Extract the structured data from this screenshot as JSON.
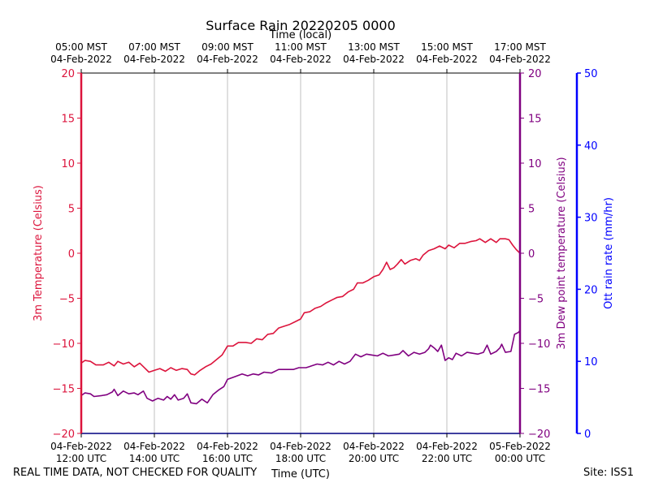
{
  "chart_data": {
    "type": "line",
    "title": "Surface Rain 20220205 0000",
    "xlabel_bottom": "Time (UTC)",
    "xlabel_top": "Time (local)",
    "x_range_hours_utc": [
      12,
      24
    ],
    "x_ticks_bottom": [
      {
        "hour": 12,
        "date": "04-Feb-2022",
        "time": "12:00 UTC"
      },
      {
        "hour": 14,
        "date": "04-Feb-2022",
        "time": "14:00 UTC"
      },
      {
        "hour": 16,
        "date": "04-Feb-2022",
        "time": "16:00 UTC"
      },
      {
        "hour": 18,
        "date": "04-Feb-2022",
        "time": "18:00 UTC"
      },
      {
        "hour": 20,
        "date": "04-Feb-2022",
        "time": "20:00 UTC"
      },
      {
        "hour": 22,
        "date": "04-Feb-2022",
        "time": "22:00 UTC"
      },
      {
        "hour": 24,
        "date": "05-Feb-2022",
        "time": "00:00 UTC"
      }
    ],
    "x_ticks_top": [
      {
        "hour": 12,
        "time": "05:00 MST",
        "date": "04-Feb-2022"
      },
      {
        "hour": 14,
        "time": "07:00 MST",
        "date": "04-Feb-2022"
      },
      {
        "hour": 16,
        "time": "09:00 MST",
        "date": "04-Feb-2022"
      },
      {
        "hour": 18,
        "time": "11:00 MST",
        "date": "04-Feb-2022"
      },
      {
        "hour": 20,
        "time": "13:00 MST",
        "date": "04-Feb-2022"
      },
      {
        "hour": 22,
        "time": "15:00 MST",
        "date": "04-Feb-2022"
      },
      {
        "hour": 24,
        "time": "17:00 MST",
        "date": "04-Feb-2022"
      }
    ],
    "y_left": {
      "label": "3m Temperature (Celsius)",
      "ylim": [
        -20,
        20
      ],
      "ticks": [
        -20,
        -15,
        -10,
        -5,
        0,
        5,
        10,
        15,
        20
      ],
      "color": "#dc143c"
    },
    "y_right1": {
      "label": "3m Dew point temperature (Celsius)",
      "ylim": [
        -20,
        20
      ],
      "ticks": [
        -20,
        -15,
        -10,
        -5,
        0,
        5,
        10,
        15,
        20
      ],
      "color": "#800080"
    },
    "y_right2": {
      "label": "Ott rain rate (mm/hr)",
      "ylim": [
        0,
        50
      ],
      "ticks": [
        0,
        10,
        20,
        30,
        40,
        50
      ],
      "color": "#0000ff"
    },
    "grid": "vertical",
    "series": [
      {
        "axis": "left",
        "color": "#dc143c",
        "points": [
          [
            12.0,
            -12.2
          ],
          [
            12.1,
            -11.9
          ],
          [
            12.25,
            -12.0
          ],
          [
            12.4,
            -12.4
          ],
          [
            12.6,
            -12.4
          ],
          [
            12.75,
            -12.1
          ],
          [
            12.9,
            -12.5
          ],
          [
            13.0,
            -12.0
          ],
          [
            13.15,
            -12.3
          ],
          [
            13.3,
            -12.1
          ],
          [
            13.45,
            -12.6
          ],
          [
            13.6,
            -12.2
          ],
          [
            13.75,
            -12.8
          ],
          [
            13.85,
            -13.2
          ],
          [
            14.0,
            -13.0
          ],
          [
            14.15,
            -12.8
          ],
          [
            14.3,
            -13.1
          ],
          [
            14.45,
            -12.7
          ],
          [
            14.6,
            -13.0
          ],
          [
            14.75,
            -12.8
          ],
          [
            14.9,
            -12.9
          ],
          [
            15.0,
            -13.4
          ],
          [
            15.1,
            -13.5
          ],
          [
            15.25,
            -13.0
          ],
          [
            15.4,
            -12.6
          ],
          [
            15.55,
            -12.3
          ],
          [
            15.7,
            -11.8
          ],
          [
            15.85,
            -11.3
          ],
          [
            16.0,
            -10.3
          ],
          [
            16.15,
            -10.3
          ],
          [
            16.3,
            -9.9
          ],
          [
            16.5,
            -9.9
          ],
          [
            16.65,
            -10.0
          ],
          [
            16.8,
            -9.5
          ],
          [
            16.95,
            -9.6
          ],
          [
            17.1,
            -9.0
          ],
          [
            17.25,
            -8.9
          ],
          [
            17.4,
            -8.3
          ],
          [
            17.55,
            -8.1
          ],
          [
            17.7,
            -7.9
          ],
          [
            17.85,
            -7.6
          ],
          [
            18.0,
            -7.3
          ],
          [
            18.1,
            -6.6
          ],
          [
            18.25,
            -6.5
          ],
          [
            18.4,
            -6.1
          ],
          [
            18.55,
            -5.9
          ],
          [
            18.7,
            -5.5
          ],
          [
            18.85,
            -5.2
          ],
          [
            19.0,
            -4.9
          ],
          [
            19.15,
            -4.8
          ],
          [
            19.3,
            -4.3
          ],
          [
            19.45,
            -4.0
          ],
          [
            19.55,
            -3.3
          ],
          [
            19.7,
            -3.3
          ],
          [
            19.85,
            -3.0
          ],
          [
            20.0,
            -2.6
          ],
          [
            20.15,
            -2.4
          ],
          [
            20.25,
            -1.8
          ],
          [
            20.35,
            -1.0
          ],
          [
            20.45,
            -1.8
          ],
          [
            20.55,
            -1.6
          ],
          [
            20.65,
            -1.2
          ],
          [
            20.75,
            -0.7
          ],
          [
            20.85,
            -1.2
          ],
          [
            21.0,
            -0.8
          ],
          [
            21.15,
            -0.6
          ],
          [
            21.25,
            -0.8
          ],
          [
            21.35,
            -0.2
          ],
          [
            21.5,
            0.3
          ],
          [
            21.65,
            0.5
          ],
          [
            21.8,
            0.8
          ],
          [
            21.95,
            0.5
          ],
          [
            22.05,
            0.9
          ],
          [
            22.2,
            0.6
          ],
          [
            22.35,
            1.1
          ],
          [
            22.5,
            1.1
          ],
          [
            22.65,
            1.3
          ],
          [
            22.8,
            1.4
          ],
          [
            22.9,
            1.6
          ],
          [
            23.05,
            1.2
          ],
          [
            23.2,
            1.6
          ],
          [
            23.35,
            1.2
          ],
          [
            23.45,
            1.6
          ],
          [
            23.6,
            1.6
          ],
          [
            23.7,
            1.5
          ],
          [
            23.8,
            0.9
          ],
          [
            23.9,
            0.4
          ],
          [
            24.0,
            0.0
          ]
        ]
      },
      {
        "axis": "right1",
        "color": "#800080",
        "points": [
          [
            12.0,
            -15.8
          ],
          [
            12.1,
            -15.5
          ],
          [
            12.25,
            -15.6
          ],
          [
            12.35,
            -15.9
          ],
          [
            12.55,
            -15.8
          ],
          [
            12.7,
            -15.7
          ],
          [
            12.85,
            -15.4
          ],
          [
            12.9,
            -15.1
          ],
          [
            13.0,
            -15.8
          ],
          [
            13.15,
            -15.3
          ],
          [
            13.3,
            -15.6
          ],
          [
            13.45,
            -15.5
          ],
          [
            13.55,
            -15.7
          ],
          [
            13.7,
            -15.3
          ],
          [
            13.8,
            -16.1
          ],
          [
            13.95,
            -16.4
          ],
          [
            14.1,
            -16.1
          ],
          [
            14.25,
            -16.3
          ],
          [
            14.35,
            -15.9
          ],
          [
            14.45,
            -16.2
          ],
          [
            14.55,
            -15.7
          ],
          [
            14.65,
            -16.3
          ],
          [
            14.8,
            -16.1
          ],
          [
            14.9,
            -15.6
          ],
          [
            15.0,
            -16.6
          ],
          [
            15.15,
            -16.7
          ],
          [
            15.3,
            -16.2
          ],
          [
            15.45,
            -16.6
          ],
          [
            15.6,
            -15.7
          ],
          [
            15.75,
            -15.2
          ],
          [
            15.9,
            -14.8
          ],
          [
            16.0,
            -14.0
          ],
          [
            16.2,
            -13.7
          ],
          [
            16.4,
            -13.4
          ],
          [
            16.55,
            -13.6
          ],
          [
            16.7,
            -13.4
          ],
          [
            16.85,
            -13.5
          ],
          [
            17.0,
            -13.2
          ],
          [
            17.2,
            -13.3
          ],
          [
            17.4,
            -12.9
          ],
          [
            17.6,
            -12.9
          ],
          [
            17.8,
            -12.9
          ],
          [
            17.95,
            -12.7
          ],
          [
            18.15,
            -12.7
          ],
          [
            18.3,
            -12.5
          ],
          [
            18.45,
            -12.3
          ],
          [
            18.6,
            -12.4
          ],
          [
            18.75,
            -12.1
          ],
          [
            18.9,
            -12.4
          ],
          [
            19.05,
            -12.0
          ],
          [
            19.2,
            -12.3
          ],
          [
            19.35,
            -12.0
          ],
          [
            19.5,
            -11.2
          ],
          [
            19.65,
            -11.5
          ],
          [
            19.8,
            -11.2
          ],
          [
            19.95,
            -11.3
          ],
          [
            20.1,
            -11.4
          ],
          [
            20.25,
            -11.1
          ],
          [
            20.4,
            -11.4
          ],
          [
            20.55,
            -11.3
          ],
          [
            20.7,
            -11.2
          ],
          [
            20.8,
            -10.8
          ],
          [
            20.95,
            -11.4
          ],
          [
            21.1,
            -11.0
          ],
          [
            21.25,
            -11.2
          ],
          [
            21.4,
            -11.0
          ],
          [
            21.5,
            -10.6
          ],
          [
            21.55,
            -10.2
          ],
          [
            21.65,
            -10.5
          ],
          [
            21.75,
            -10.9
          ],
          [
            21.85,
            -10.2
          ],
          [
            21.95,
            -11.9
          ],
          [
            22.05,
            -11.6
          ],
          [
            22.15,
            -11.8
          ],
          [
            22.25,
            -11.1
          ],
          [
            22.4,
            -11.4
          ],
          [
            22.55,
            -11.0
          ],
          [
            22.7,
            -11.1
          ],
          [
            22.85,
            -11.2
          ],
          [
            23.0,
            -11.0
          ],
          [
            23.1,
            -10.2
          ],
          [
            23.2,
            -11.2
          ],
          [
            23.35,
            -10.9
          ],
          [
            23.45,
            -10.5
          ],
          [
            23.5,
            -10.1
          ],
          [
            23.6,
            -11.0
          ],
          [
            23.75,
            -10.9
          ],
          [
            23.85,
            -9.0
          ],
          [
            23.95,
            -8.8
          ],
          [
            24.0,
            -8.6
          ]
        ]
      }
    ]
  },
  "footer": {
    "qc_note": "REAL TIME DATA, NOT CHECKED FOR QUALITY",
    "site": "Site: ISS1"
  }
}
